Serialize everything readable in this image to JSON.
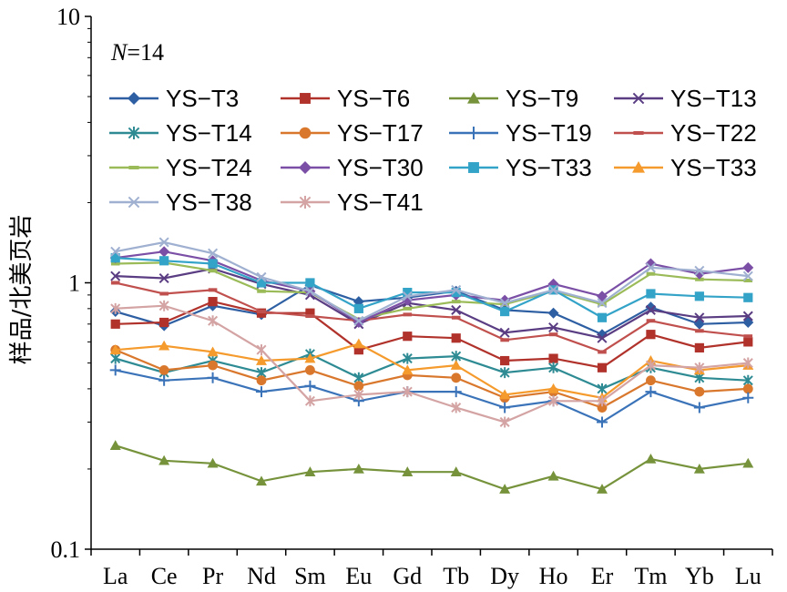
{
  "chart_data": {
    "type": "line",
    "title": "",
    "xlabel": "",
    "ylabel": "样品/北美页岩",
    "yscale": "log",
    "ylim": [
      0.1,
      10
    ],
    "y_ticks": [
      "0.1",
      "1",
      "10"
    ],
    "grid": false,
    "legend_position": "top-inside",
    "annotation_n": "N",
    "annotation_value": "=14",
    "categories": [
      "La",
      "Ce",
      "Pr",
      "Nd",
      "Sm",
      "Eu",
      "Gd",
      "Tb",
      "Dy",
      "Ho",
      "Er",
      "Tm",
      "Yb",
      "Lu"
    ],
    "series": [
      {
        "name": "YS−T3",
        "color": "#2e5fa3",
        "marker": "diamond",
        "values": [
          0.78,
          0.69,
          0.82,
          0.76,
          0.98,
          0.85,
          0.88,
          0.93,
          0.79,
          0.77,
          0.64,
          0.81,
          0.7,
          0.71
        ]
      },
      {
        "name": "YS−T6",
        "color": "#b0322b",
        "marker": "square",
        "values": [
          0.7,
          0.71,
          0.85,
          0.77,
          0.77,
          0.56,
          0.63,
          0.62,
          0.51,
          0.52,
          0.48,
          0.64,
          0.57,
          0.6
        ]
      },
      {
        "name": "YS−T9",
        "color": "#76933c",
        "marker": "triangle",
        "values": [
          0.245,
          0.215,
          0.21,
          0.18,
          0.195,
          0.2,
          0.195,
          0.195,
          0.168,
          0.188,
          0.168,
          0.218,
          0.2,
          0.21
        ]
      },
      {
        "name": "YS−T13",
        "color": "#5a3d82",
        "marker": "x",
        "values": [
          1.06,
          1.04,
          1.13,
          0.99,
          0.9,
          0.7,
          0.84,
          0.79,
          0.65,
          0.68,
          0.62,
          0.79,
          0.74,
          0.75
        ]
      },
      {
        "name": "YS−T14",
        "color": "#2e8b93",
        "marker": "asterisk",
        "values": [
          0.52,
          0.46,
          0.51,
          0.46,
          0.54,
          0.44,
          0.52,
          0.53,
          0.46,
          0.48,
          0.4,
          0.48,
          0.44,
          0.43
        ]
      },
      {
        "name": "YS−T17",
        "color": "#d9782d",
        "marker": "circle",
        "values": [
          0.56,
          0.47,
          0.49,
          0.43,
          0.47,
          0.41,
          0.45,
          0.44,
          0.37,
          0.39,
          0.34,
          0.43,
          0.39,
          0.4
        ]
      },
      {
        "name": "YS−T19",
        "color": "#3b73b9",
        "marker": "plus",
        "values": [
          0.47,
          0.43,
          0.44,
          0.39,
          0.41,
          0.36,
          0.39,
          0.39,
          0.34,
          0.36,
          0.3,
          0.39,
          0.34,
          0.37
        ]
      },
      {
        "name": "YS−T22",
        "color": "#c0504d",
        "marker": "dash",
        "values": [
          1.0,
          0.91,
          0.94,
          0.78,
          0.75,
          0.72,
          0.76,
          0.74,
          0.61,
          0.64,
          0.55,
          0.72,
          0.66,
          0.63
        ]
      },
      {
        "name": "YS−T24",
        "color": "#9bbb59",
        "marker": "dash",
        "values": [
          1.18,
          1.19,
          1.11,
          0.93,
          0.92,
          0.73,
          0.8,
          0.85,
          0.83,
          0.93,
          0.83,
          1.08,
          1.03,
          1.02
        ]
      },
      {
        "name": "YS−T30",
        "color": "#7b4fa6",
        "marker": "diamond",
        "values": [
          1.24,
          1.31,
          1.21,
          1.02,
          0.93,
          0.71,
          0.86,
          0.9,
          0.86,
          0.99,
          0.89,
          1.18,
          1.08,
          1.14
        ]
      },
      {
        "name": "YS−T33",
        "color": "#34a3c8",
        "marker": "square",
        "values": [
          1.24,
          1.21,
          1.18,
          1.0,
          1.0,
          0.8,
          0.92,
          0.92,
          0.78,
          0.94,
          0.74,
          0.91,
          0.89,
          0.88
        ]
      },
      {
        "name": "YS−T33",
        "color": "#f59a2c",
        "marker": "triangle",
        "values": [
          0.56,
          0.58,
          0.55,
          0.51,
          0.52,
          0.59,
          0.47,
          0.49,
          0.38,
          0.4,
          0.37,
          0.51,
          0.47,
          0.49
        ]
      },
      {
        "name": "YS−T38",
        "color": "#9fb0d0",
        "marker": "x",
        "values": [
          1.31,
          1.42,
          1.29,
          1.05,
          0.93,
          0.72,
          0.89,
          0.94,
          0.84,
          0.94,
          0.84,
          1.14,
          1.11,
          1.06
        ]
      },
      {
        "name": "YS−T41",
        "color": "#d4a3a3",
        "marker": "asterisk",
        "values": [
          0.8,
          0.82,
          0.72,
          0.56,
          0.36,
          0.38,
          0.39,
          0.34,
          0.3,
          0.36,
          0.36,
          0.49,
          0.48,
          0.5
        ]
      }
    ]
  }
}
